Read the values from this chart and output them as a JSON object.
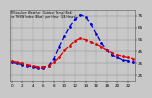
{
  "hours": [
    0,
    1,
    2,
    3,
    4,
    5,
    6,
    7,
    8,
    9,
    10,
    11,
    12,
    13,
    14,
    15,
    16,
    17,
    18,
    19,
    20,
    21,
    22,
    23
  ],
  "temp_red": [
    37,
    36,
    35,
    34,
    33,
    32,
    32,
    33,
    36,
    40,
    46,
    50,
    54,
    56,
    55,
    53,
    51,
    49,
    46,
    44,
    42,
    41,
    40,
    39
  ],
  "thsw_blue": [
    36,
    35,
    34,
    33,
    32,
    31,
    31,
    33,
    39,
    49,
    58,
    66,
    72,
    76,
    74,
    68,
    60,
    52,
    46,
    42,
    40,
    38,
    37,
    36
  ],
  "color_red": "#dd0000",
  "color_blue": "#0000dd",
  "ylim_min": 20,
  "ylim_max": 80,
  "yticks": [
    25,
    35,
    45,
    55,
    65,
    75
  ],
  "ytick_labels": [
    "25",
    "35",
    "45",
    "55",
    "65",
    "75"
  ],
  "background": "#c8c8c8",
  "plot_bg": "#c8c8c8",
  "grid_color": "#888888",
  "xtick_positions": [
    0,
    2,
    4,
    6,
    8,
    10,
    12,
    14,
    16,
    18,
    20,
    22
  ],
  "xtick_labels": [
    "0",
    "2",
    "4",
    "6",
    "8",
    "10",
    "12",
    "14",
    "16",
    "18",
    "20",
    "22"
  ]
}
